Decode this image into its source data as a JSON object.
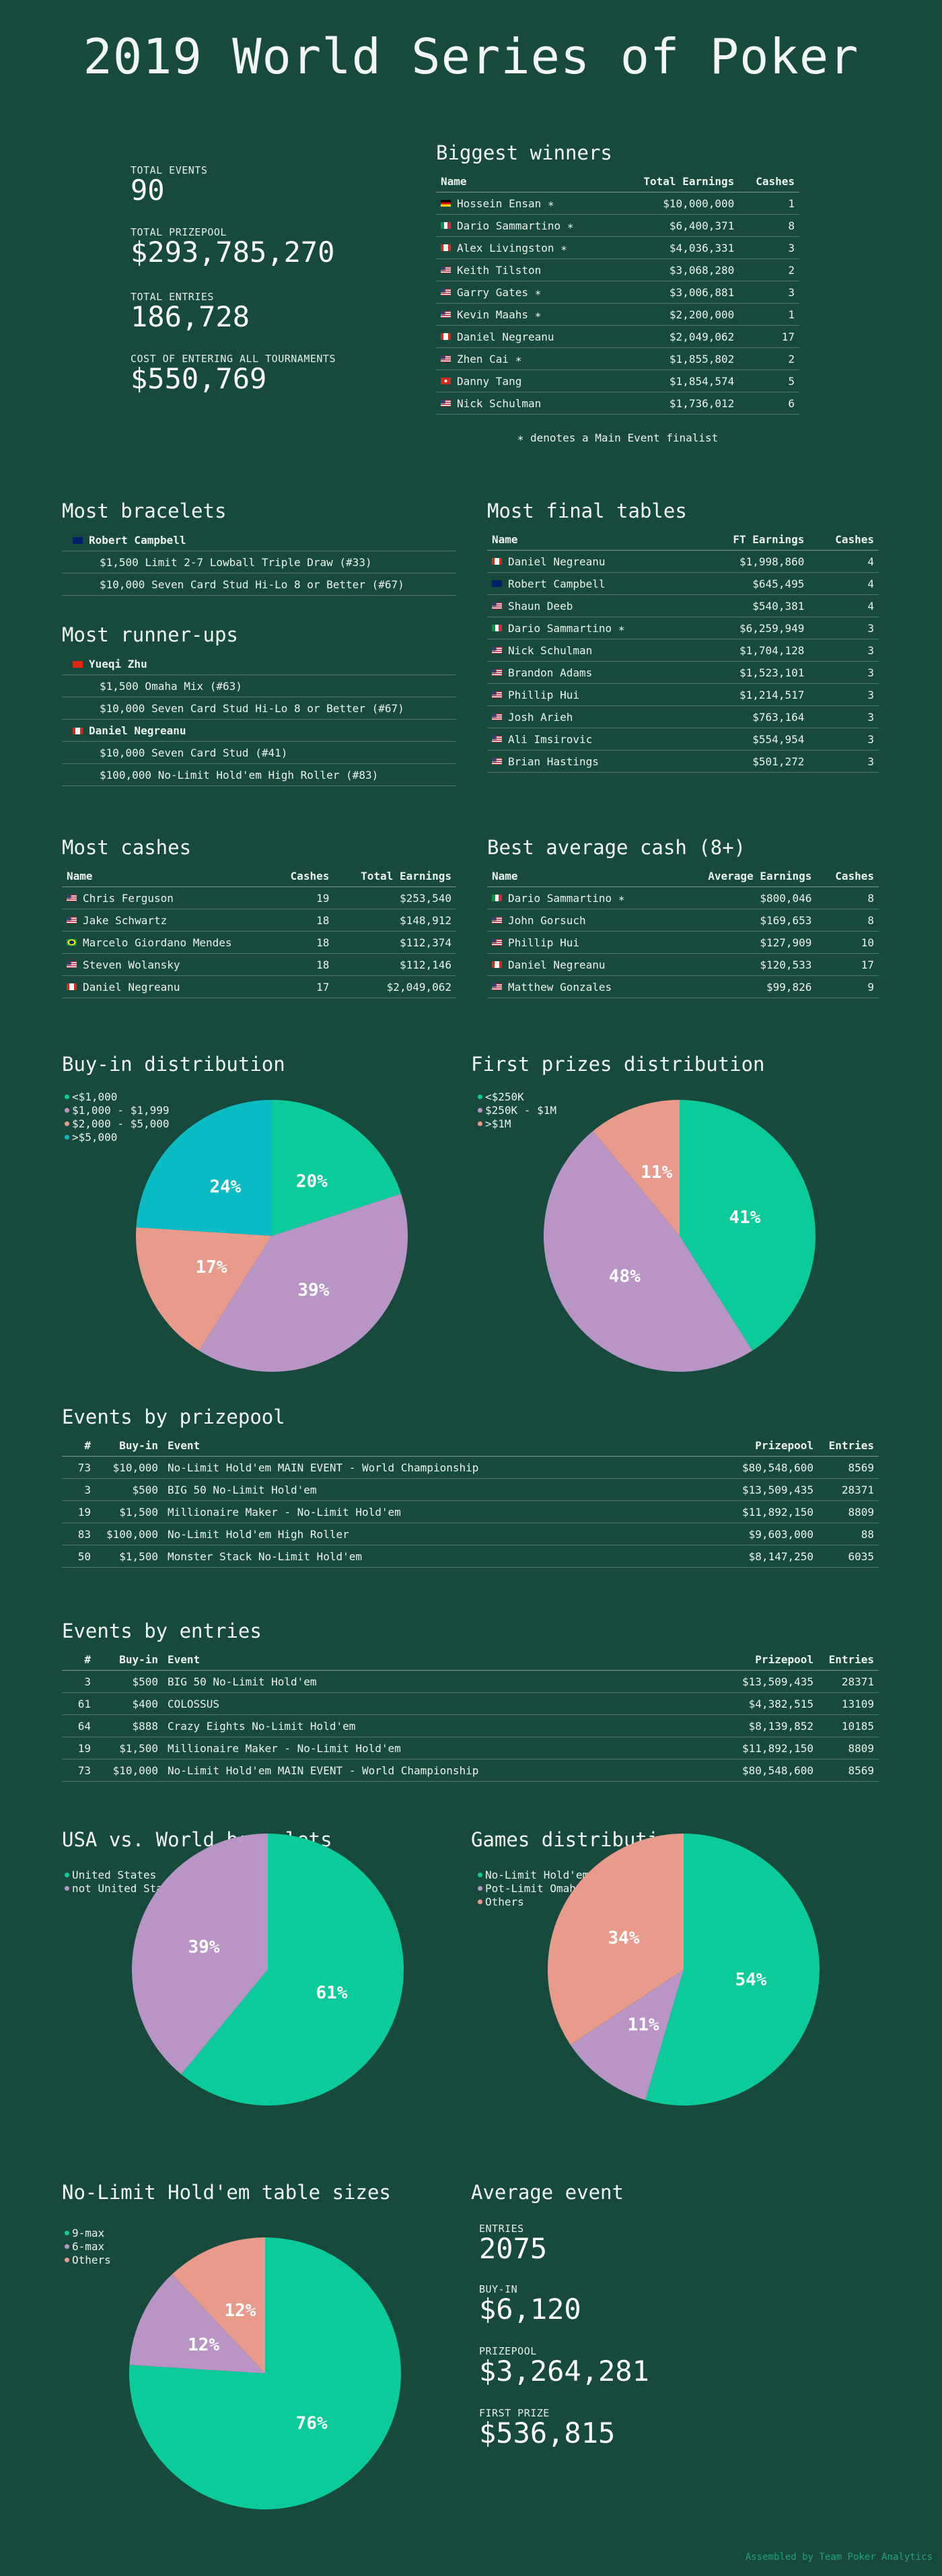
{
  "title": "2019 World Series of Poker",
  "colors": {
    "bg": "#17493d",
    "teal": "#0acb99",
    "purple": "#b995c6",
    "salmon": "#e89a8b",
    "cyan": "#0bbcc4"
  },
  "stats": [
    {
      "label": "TOTAL EVENTS",
      "value": "90"
    },
    {
      "label": "TOTAL PRIZEPOOL",
      "value": "$293,785,270"
    },
    {
      "label": "TOTAL ENTRIES",
      "value": "186,728"
    },
    {
      "label": "COST OF ENTERING ALL TOURNAMENTS",
      "value": "$550,769"
    }
  ],
  "biggest_winners": {
    "title": "Biggest winners",
    "headers": [
      "Name",
      "Total Earnings",
      "Cashes"
    ],
    "rows": [
      {
        "flag": "de",
        "name": "Hossein Ensan",
        "star": true,
        "earnings": "$10,000,000",
        "cashes": "1"
      },
      {
        "flag": "it",
        "name": "Dario Sammartino",
        "star": true,
        "earnings": "$6,400,371",
        "cashes": "8"
      },
      {
        "flag": "ca",
        "name": "Alex Livingston",
        "star": true,
        "earnings": "$4,036,331",
        "cashes": "3"
      },
      {
        "flag": "us",
        "name": "Keith Tilston",
        "star": false,
        "earnings": "$3,068,280",
        "cashes": "2"
      },
      {
        "flag": "us",
        "name": "Garry Gates",
        "star": true,
        "earnings": "$3,006,881",
        "cashes": "3"
      },
      {
        "flag": "us",
        "name": "Kevin Maahs",
        "star": true,
        "earnings": "$2,200,000",
        "cashes": "1"
      },
      {
        "flag": "ca",
        "name": "Daniel Negreanu",
        "star": false,
        "earnings": "$2,049,062",
        "cashes": "17"
      },
      {
        "flag": "us",
        "name": "Zhen Cai",
        "star": true,
        "earnings": "$1,855,802",
        "cashes": "2"
      },
      {
        "flag": "ch",
        "name": "Danny Tang",
        "star": false,
        "earnings": "$1,854,574",
        "cashes": "5"
      },
      {
        "flag": "us",
        "name": "Nick Schulman",
        "star": false,
        "earnings": "$1,736,012",
        "cashes": "6"
      }
    ],
    "note": "∗ denotes a Main Event finalist"
  },
  "most_bracelets": {
    "title": "Most bracelets",
    "groups": [
      {
        "flag": "au",
        "player": "Robert Campbell",
        "events": [
          "$1,500 Limit 2-7 Lowball Triple Draw (#33)",
          "$10,000 Seven Card Stud Hi-Lo 8 or Better (#67)"
        ]
      }
    ]
  },
  "most_runnerups": {
    "title": "Most runner-ups",
    "groups": [
      {
        "flag": "cn",
        "player": "Yueqi Zhu",
        "events": [
          "$1,500 Omaha Mix (#63)",
          "$10,000 Seven Card Stud Hi-Lo 8 or Better (#67)"
        ]
      },
      {
        "flag": "ca",
        "player": "Daniel Negreanu",
        "events": [
          "$10,000 Seven Card Stud (#41)",
          "$100,000 No-Limit Hold'em High Roller (#83)"
        ]
      }
    ]
  },
  "most_final_tables": {
    "title": "Most final tables",
    "headers": [
      "Name",
      "FT Earnings",
      "Cashes"
    ],
    "rows": [
      {
        "flag": "ca",
        "name": "Daniel Negreanu",
        "star": false,
        "earnings": "$1,998,860",
        "cashes": "4"
      },
      {
        "flag": "au",
        "name": "Robert Campbell",
        "star": false,
        "earnings": "$645,495",
        "cashes": "4"
      },
      {
        "flag": "us",
        "name": "Shaun Deeb",
        "star": false,
        "earnings": "$540,381",
        "cashes": "4"
      },
      {
        "flag": "it",
        "name": "Dario Sammartino",
        "star": true,
        "earnings": "$6,259,949",
        "cashes": "3"
      },
      {
        "flag": "us",
        "name": "Nick Schulman",
        "star": false,
        "earnings": "$1,704,128",
        "cashes": "3"
      },
      {
        "flag": "us",
        "name": "Brandon Adams",
        "star": false,
        "earnings": "$1,523,101",
        "cashes": "3"
      },
      {
        "flag": "us",
        "name": "Phillip Hui",
        "star": false,
        "earnings": "$1,214,517",
        "cashes": "3"
      },
      {
        "flag": "us",
        "name": "Josh Arieh",
        "star": false,
        "earnings": "$763,164",
        "cashes": "3"
      },
      {
        "flag": "us",
        "name": "Ali Imsirovic",
        "star": false,
        "earnings": "$554,954",
        "cashes": "3"
      },
      {
        "flag": "us",
        "name": "Brian Hastings",
        "star": false,
        "earnings": "$501,272",
        "cashes": "3"
      }
    ]
  },
  "most_cashes": {
    "title": "Most cashes",
    "headers": [
      "Name",
      "Cashes",
      "Total Earnings"
    ],
    "rows": [
      {
        "flag": "us",
        "name": "Chris Ferguson",
        "cashes": "19",
        "earnings": "$253,540"
      },
      {
        "flag": "us",
        "name": "Jake Schwartz",
        "cashes": "18",
        "earnings": "$148,912"
      },
      {
        "flag": "br",
        "name": "Marcelo Giordano Mendes",
        "cashes": "18",
        "earnings": "$112,374"
      },
      {
        "flag": "us",
        "name": "Steven Wolansky",
        "cashes": "18",
        "earnings": "$112,146"
      },
      {
        "flag": "ca",
        "name": "Daniel Negreanu",
        "cashes": "17",
        "earnings": "$2,049,062"
      }
    ]
  },
  "best_avg_cash": {
    "title": "Best average cash (8+)",
    "headers": [
      "Name",
      "Average Earnings",
      "Cashes"
    ],
    "rows": [
      {
        "flag": "it",
        "name": "Dario Sammartino",
        "star": true,
        "earnings": "$800,046",
        "cashes": "8"
      },
      {
        "flag": "us",
        "name": "John Gorsuch",
        "star": false,
        "earnings": "$169,653",
        "cashes": "8"
      },
      {
        "flag": "us",
        "name": "Phillip Hui",
        "star": false,
        "earnings": "$127,909",
        "cashes": "10"
      },
      {
        "flag": "ca",
        "name": "Daniel Negreanu",
        "star": false,
        "earnings": "$120,533",
        "cashes": "17"
      },
      {
        "flag": "us",
        "name": "Matthew Gonzales",
        "star": false,
        "earnings": "$99,826",
        "cashes": "9"
      }
    ]
  },
  "events_by_prizepool": {
    "title": "Events by prizepool",
    "headers": [
      "#",
      "Buy-in",
      "Event",
      "Prizepool",
      "Entries"
    ],
    "rows": [
      [
        "73",
        "$10,000",
        "No-Limit Hold'em MAIN EVENT - World Championship",
        "$80,548,600",
        "8569"
      ],
      [
        "3",
        "$500",
        "BIG 50 No-Limit Hold'em",
        "$13,509,435",
        "28371"
      ],
      [
        "19",
        "$1,500",
        "Millionaire Maker - No-Limit Hold'em",
        "$11,892,150",
        "8809"
      ],
      [
        "83",
        "$100,000",
        "No-Limit Hold'em High Roller",
        "$9,603,000",
        "88"
      ],
      [
        "50",
        "$1,500",
        "Monster Stack No-Limit Hold'em",
        "$8,147,250",
        "6035"
      ]
    ]
  },
  "events_by_entries": {
    "title": "Events by entries",
    "headers": [
      "#",
      "Buy-in",
      "Event",
      "Prizepool",
      "Entries"
    ],
    "rows": [
      [
        "3",
        "$500",
        "BIG 50 No-Limit Hold'em",
        "$13,509,435",
        "28371"
      ],
      [
        "61",
        "$400",
        "COLOSSUS",
        "$4,382,515",
        "13109"
      ],
      [
        "64",
        "$888",
        "Crazy Eights No-Limit Hold'em",
        "$8,139,852",
        "10185"
      ],
      [
        "19",
        "$1,500",
        "Millionaire Maker - No-Limit Hold'em",
        "$11,892,150",
        "8809"
      ],
      [
        "73",
        "$10,000",
        "No-Limit Hold'em MAIN EVENT - World Championship",
        "$80,548,600",
        "8569"
      ]
    ]
  },
  "chart_data": [
    {
      "type": "pie",
      "title": "Buy-in distribution",
      "legend": "top-left",
      "categories": [
        "<$1,000",
        "$1,000 - $1,999",
        "$2,000 - $5,000",
        ">$5,000"
      ],
      "values": [
        20,
        39,
        17,
        24
      ],
      "labels": [
        "20%",
        "39%",
        "17%",
        "24%"
      ],
      "colors": [
        "#0acb99",
        "#b995c6",
        "#e89a8b",
        "#0bbcc4"
      ]
    },
    {
      "type": "pie",
      "title": "First prizes distribution",
      "legend": "top-left",
      "categories": [
        "<$250K",
        "$250K - $1M",
        ">$1M"
      ],
      "values": [
        41,
        48,
        11
      ],
      "labels": [
        "41%",
        "48%",
        "11%"
      ],
      "colors": [
        "#0acb99",
        "#b995c6",
        "#e89a8b"
      ]
    },
    {
      "type": "pie",
      "title": "USA vs. World bracelets",
      "legend": "top-left",
      "categories": [
        "United States",
        "not United States"
      ],
      "values": [
        61,
        39
      ],
      "labels": [
        "61%",
        "39%"
      ],
      "colors": [
        "#0acb99",
        "#b995c6"
      ]
    },
    {
      "type": "pie",
      "title": "Games distribution",
      "legend": "top-left",
      "categories": [
        "No-Limit Hold'em",
        "Pot-Limit Omaha",
        "Others"
      ],
      "values": [
        54,
        11,
        34
      ],
      "labels": [
        "54%",
        "11%",
        "34%"
      ],
      "colors": [
        "#0acb99",
        "#b995c6",
        "#e89a8b"
      ]
    },
    {
      "type": "pie",
      "title": "No-Limit Hold'em table sizes",
      "legend": "top-left",
      "categories": [
        "9-max",
        "6-max",
        "Others"
      ],
      "values": [
        76,
        12,
        12
      ],
      "labels": [
        "76%",
        "12%",
        "12%"
      ],
      "colors": [
        "#0acb99",
        "#b995c6",
        "#e89a8b"
      ]
    }
  ],
  "average_event": {
    "title": "Average event",
    "stats": [
      {
        "label": "ENTRIES",
        "value": "2075"
      },
      {
        "label": "BUY-IN",
        "value": "$6,120"
      },
      {
        "label": "PRIZEPOOL",
        "value": "$3,264,281"
      },
      {
        "label": "FIRST PRIZE",
        "value": "$536,815"
      }
    ]
  },
  "footer": "Assembled by Team Poker Analytics"
}
